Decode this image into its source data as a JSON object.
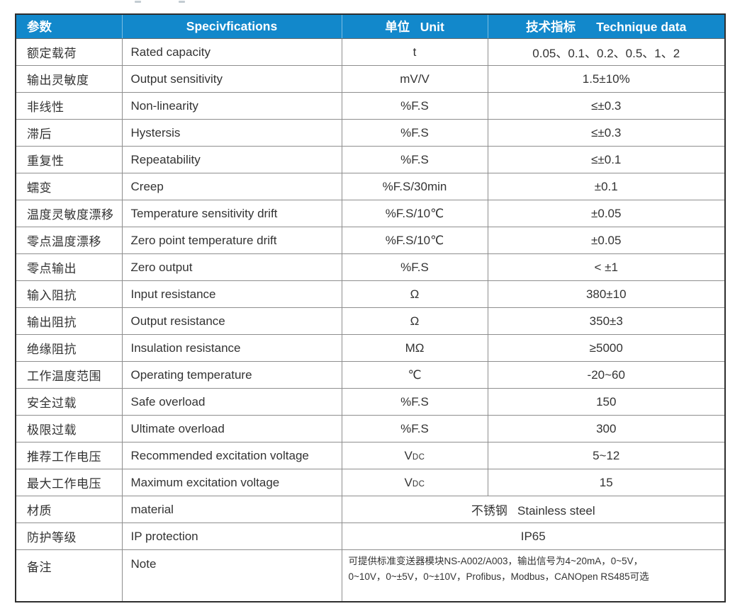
{
  "colors": {
    "header_bg": "#1288cb",
    "header_text": "#ffffff",
    "body_text": "#333333",
    "border_outer": "#2e2e2e",
    "border_inner": "#8e8e8e"
  },
  "table": {
    "headers": [
      {
        "label": "参数"
      },
      {
        "label": "Specivfications"
      },
      {
        "label": "单位   Unit"
      },
      {
        "label": "技术指标      Technique data"
      }
    ],
    "rows": [
      {
        "cn": "额定载荷",
        "en": "Rated capacity",
        "unit": "t",
        "value": "0.05、0.1、0.2、0.5、1、2"
      },
      {
        "cn": "输出灵敏度",
        "en": "Output sensitivity",
        "unit": "mV/V",
        "value": "1.5±10%"
      },
      {
        "cn": "非线性",
        "en": "Non-linearity",
        "unit": "%F.S",
        "value": "≤±0.3"
      },
      {
        "cn": "滞后",
        "en": "Hystersis",
        "unit": "%F.S",
        "value": "≤±0.3"
      },
      {
        "cn": "重复性",
        "en": "Repeatability",
        "unit": "%F.S",
        "value": "≤±0.1"
      },
      {
        "cn": "蠕变",
        "en": "Creep",
        "unit": "%F.S/30min",
        "value": "±0.1"
      },
      {
        "cn": "温度灵敏度漂移",
        "en": "Temperature sensitivity drift",
        "unit": "%F.S/10℃",
        "value": "±0.05"
      },
      {
        "cn": "零点温度漂移",
        "en": "Zero point temperature drift",
        "unit": "%F.S/10℃",
        "value": "±0.05"
      },
      {
        "cn": "零点输出",
        "en": "Zero output",
        "unit": "%F.S",
        "value": "< ±1"
      },
      {
        "cn": "输入阻抗",
        "en": "Input resistance",
        "unit": "Ω",
        "value": "380±10"
      },
      {
        "cn": "输出阻抗",
        "en": "Output resistance",
        "unit": "Ω",
        "value": "350±3"
      },
      {
        "cn": "绝缘阻抗",
        "en": "Insulation resistance",
        "unit": "MΩ",
        "value": "≥5000"
      },
      {
        "cn": "工作温度范围",
        "en": "Operating temperature",
        "unit": "℃",
        "value": "-20~60"
      },
      {
        "cn": "安全过载",
        "en": "Safe overload",
        "unit": "%F.S",
        "value": "150"
      },
      {
        "cn": "极限过载",
        "en": "Ultimate overload",
        "unit": "%F.S",
        "value": "300"
      },
      {
        "cn": "推荐工作电压",
        "en": "Recommended excitation voltage",
        "unit": "VDC",
        "value": "5~12"
      },
      {
        "cn": "最大工作电压",
        "en": "Maximum excitation voltage",
        "unit": "VDC",
        "value": "15"
      },
      {
        "cn": "材质",
        "en": "material",
        "merged": true,
        "value": "不锈钢   Stainless steel"
      },
      {
        "cn": "防护等级",
        "en": "IP protection",
        "merged": true,
        "value": "IP65"
      },
      {
        "cn": "备注",
        "en": "Note",
        "merged": true,
        "note": true,
        "value": "可提供标准变送器模块NS-A002/A003，输出信号为4~20mA，0~5V，\n0~10V，0~±5V，0~±10V，Profibus，Modbus，CANOpen RS485可选"
      }
    ]
  }
}
